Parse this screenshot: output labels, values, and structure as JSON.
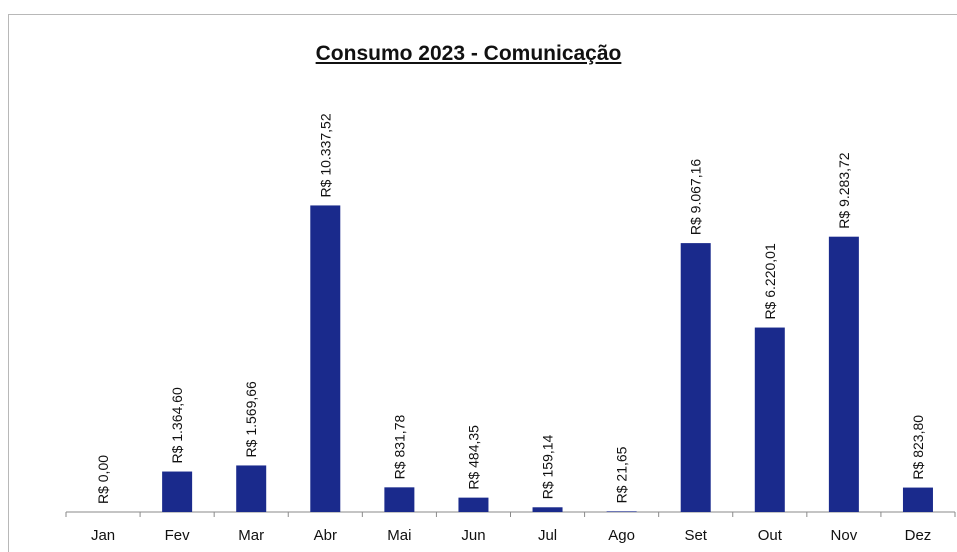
{
  "chart_data": {
    "type": "bar",
    "title": "Consumo 2023 - Comunicação",
    "xlabel": "",
    "ylabel": "",
    "categories": [
      "Jan",
      "Fev",
      "Mar",
      "Abr",
      "Mai",
      "Jun",
      "Jul",
      "Ago",
      "Set",
      "Out",
      "Nov",
      "Dez"
    ],
    "values": [
      0.0,
      1364.6,
      1569.66,
      10337.52,
      831.78,
      484.35,
      159.14,
      21.65,
      9067.16,
      6220.01,
      9283.72,
      823.8
    ],
    "data_labels": [
      "R$ 0,00",
      "R$ 1.364,60",
      "R$ 1.569,66",
      "R$ 10.337,52",
      "R$ 831,78",
      "R$ 484,35",
      "R$ 159,14",
      "R$ 21,65",
      "R$ 9.067,16",
      "R$ 6.220,01",
      "R$ 9.283,72",
      "R$ 823,80"
    ],
    "ylim": [
      0,
      14500
    ],
    "grid": false,
    "legend": "none",
    "bar_color": "#1a2a8c"
  }
}
